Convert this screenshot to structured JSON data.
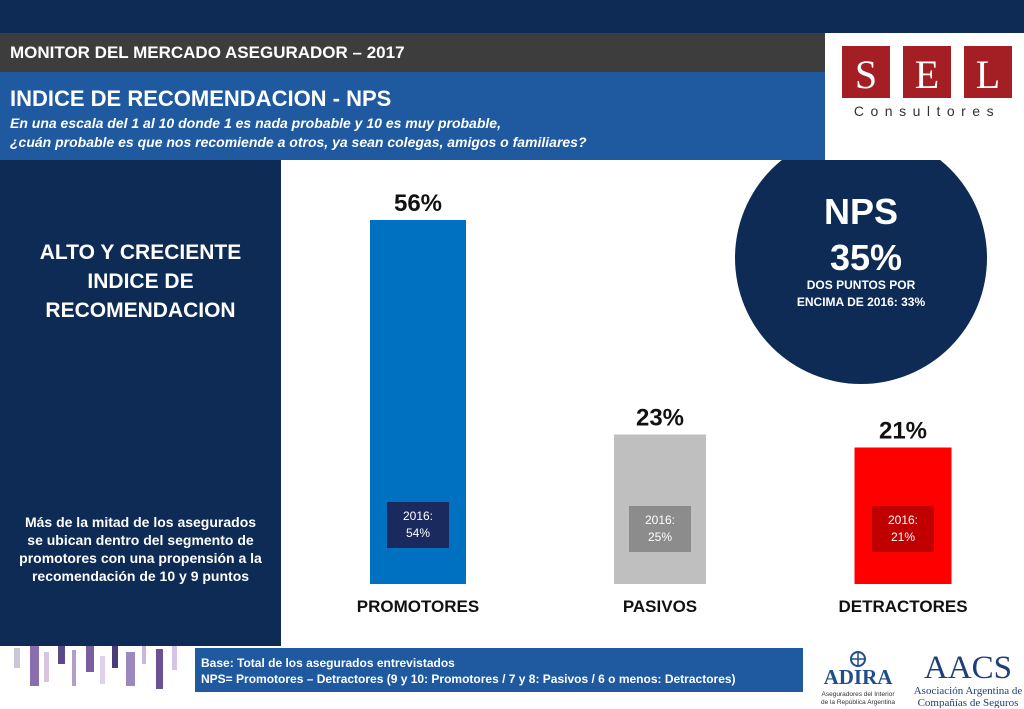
{
  "header": {
    "monitor": "MONITOR DEL MERCADO ASEGURADOR – 2017",
    "title": "INDICE DE RECOMENDACION - NPS",
    "question_line1": "En una escala del 1 al 10 donde 1 es nada probable y 10 es muy probable,",
    "question_line2": "¿cuán probable es que nos recomiende a otros, ya sean colegas, amigos o familiares?"
  },
  "logo_sel": {
    "letters": [
      "S",
      "E",
      "L"
    ],
    "tagline": "Consultores",
    "color": "#a31f24"
  },
  "left_panel": {
    "headline": [
      "ALTO Y CRECIENTE",
      "INDICE  DE",
      "RECOMENDACION"
    ],
    "note": [
      "Más de la mitad de los asegurados",
      "se ubican dentro del segmento de",
      "promotores con una propensión a la",
      "recomendación de 10 y 9 puntos"
    ]
  },
  "nps_circle": {
    "label": "NPS",
    "value": "35%",
    "note_line1": "DOS PUNTOS POR",
    "note_line2": "ENCIMA DE 2016: 33%",
    "color": "#0d2b55"
  },
  "chart_data": {
    "type": "bar",
    "categories": [
      "PROMOTORES",
      "PASIVOS",
      "DETRACTORES"
    ],
    "values": [
      56,
      23,
      21
    ],
    "value_labels": [
      "56%",
      "23%",
      "21%"
    ],
    "previous_labels": [
      "2016:\n54%",
      "2016:\n25%",
      "2016:\n21%"
    ],
    "previous_values": [
      54,
      25,
      21
    ],
    "bar_colors": [
      "#0070c0",
      "#bfbfbf",
      "#ff0000"
    ],
    "prev_box_colors": [
      "#1a2a5e",
      "#8c8c8c",
      "#c00000"
    ],
    "title": "",
    "xlabel": "",
    "ylabel": "",
    "ylim": [
      0,
      60
    ],
    "grid": false
  },
  "footer": {
    "base_line1": "Base: Total de los asegurados entrevistados",
    "base_line2": "NPS= Promotores – Detractores  (9 y 10: Promotores / 7 y 8: Pasivos / 6 o menos: Detractores)"
  },
  "logo_adira": {
    "name": "ADIRA",
    "sub1": "Aseguradores del Interior",
    "sub2": "de la República Argentina",
    "color": "#1f4e8c"
  },
  "logo_aacs": {
    "name": "AACS",
    "sub1": "Asociación Argentina de",
    "sub2": "Compañías de Seguros",
    "color": "#1f3f7a"
  }
}
